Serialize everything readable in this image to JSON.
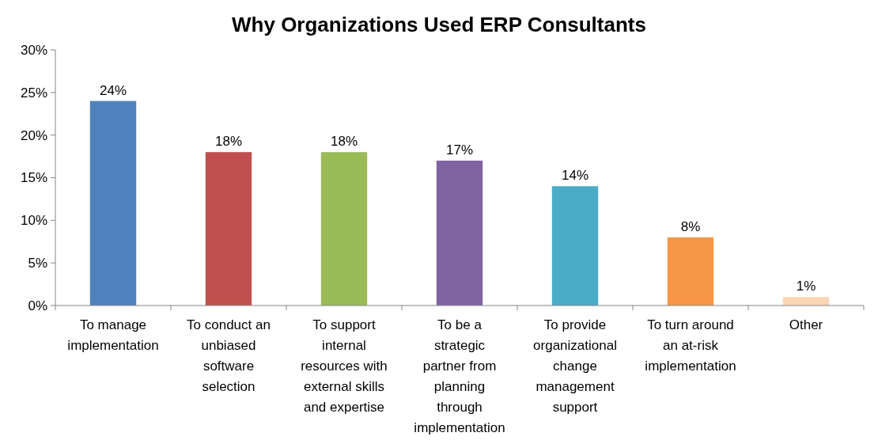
{
  "chart_data": {
    "type": "bar",
    "title": "Why Organizations Used ERP Consultants",
    "categories": [
      "To manage implementation",
      "To conduct an unbiased software selection",
      "To support internal resources with external skills and expertise",
      "To be a strategic partner from planning through implementation",
      "To provide organizational change management support",
      "To turn around an at-risk implementation",
      "Other"
    ],
    "values": [
      24,
      18,
      18,
      17,
      14,
      8,
      1
    ],
    "value_labels": [
      "24%",
      "18%",
      "18%",
      "17%",
      "14%",
      "8%",
      "1%"
    ],
    "colors": [
      "#4f81bd",
      "#c0504d",
      "#9bbb59",
      "#8064a2",
      "#4bacc6",
      "#f79646",
      "#fcd5b5"
    ],
    "ylim": [
      0,
      30
    ],
    "yticks": [
      {
        "value": 0,
        "label": "0%"
      },
      {
        "value": 5,
        "label": "5%"
      },
      {
        "value": 10,
        "label": "10%"
      },
      {
        "value": 15,
        "label": "15%"
      },
      {
        "value": 20,
        "label": "20%"
      },
      {
        "value": 25,
        "label": "25%"
      },
      {
        "value": 30,
        "label": "30%"
      }
    ],
    "grid": false
  }
}
